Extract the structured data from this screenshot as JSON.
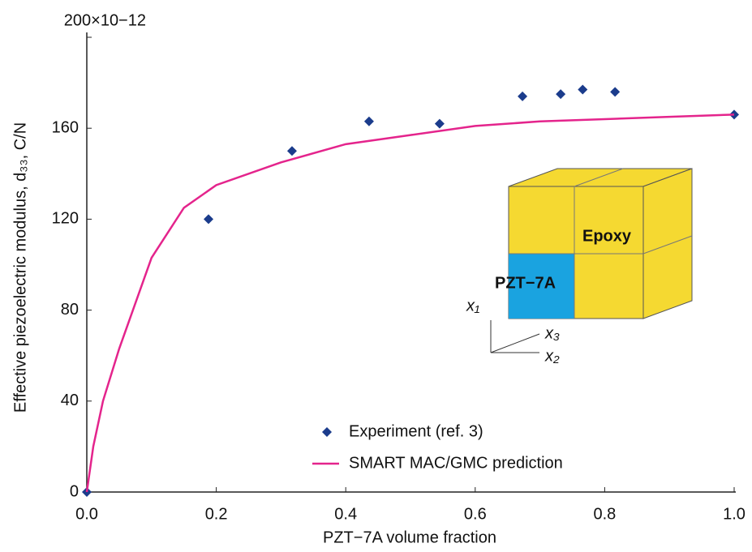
{
  "chart_data": {
    "type": "scatter",
    "xlabel": "PZT−7A volume fraction",
    "ylabel": "Effective piezoelectric modulus, d₃₃, C/N",
    "xlim": [
      0,
      1
    ],
    "ylim": [
      0,
      200
    ],
    "xticks": [
      {
        "value": 0,
        "label": "0.0"
      },
      0.2,
      0.4,
      0.6,
      0.8,
      {
        "value": 1,
        "label": "1.0"
      }
    ],
    "yticks": [
      0,
      40,
      80,
      120,
      160,
      {
        "value": 200,
        "label": "200×10−12"
      }
    ],
    "grid": false,
    "legend": "bottom",
    "series": [
      {
        "name": "Experiment (ref. 3)",
        "type": "scatter",
        "color": "#1b3c8c",
        "x": [
          0,
          0.188,
          0.317,
          0.436,
          0.545,
          0.673,
          0.732,
          0.766,
          0.816,
          1.0
        ],
        "values": [
          0,
          120,
          150,
          163,
          162,
          174,
          175,
          177,
          176,
          166
        ]
      },
      {
        "name": "SMART MAC/GMC prediction",
        "type": "line",
        "color": "#e4248c",
        "x": [
          0,
          0.01,
          0.025,
          0.05,
          0.1,
          0.15,
          0.2,
          0.3,
          0.4,
          0.5,
          0.6,
          0.7,
          0.8,
          0.9,
          1.0
        ],
        "values": [
          0,
          20,
          40,
          63,
          103,
          125,
          135,
          145,
          153,
          157,
          161,
          163,
          164,
          165,
          166
        ]
      }
    ],
    "annotations": [
      "Epoxy",
      "PZT−7A",
      "x₁",
      "x₃",
      "x₂"
    ]
  }
}
